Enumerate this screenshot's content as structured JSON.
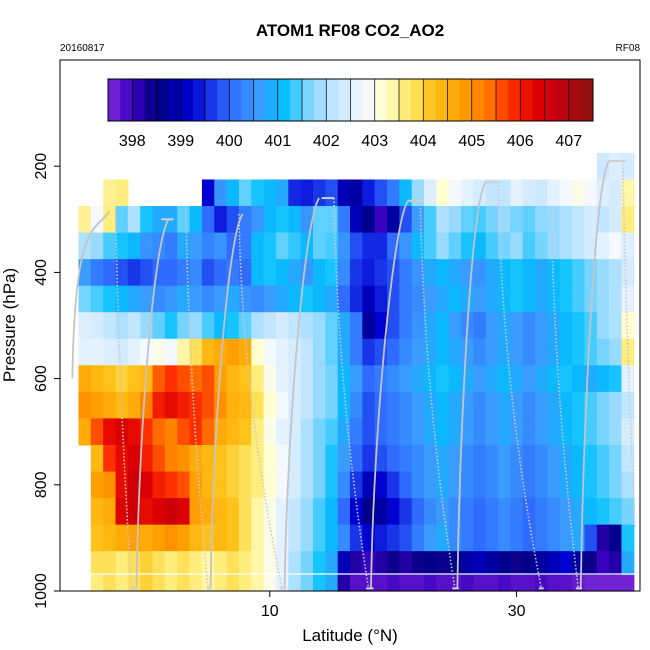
{
  "chart_data": {
    "type": "heatmap",
    "title": "ATOM1 RF08 CO2_AO2",
    "date_label": "20160817",
    "flight_label": "RF08",
    "xlabel": "Latitude (°N)",
    "ylabel": "Pressure (hPa)",
    "xlim": [
      -7,
      40
    ],
    "ylim": [
      1000,
      0
    ],
    "xticks": [
      10,
      30
    ],
    "yticks": [
      200,
      400,
      600,
      800,
      1000
    ],
    "colorbar": {
      "ticks": [
        398,
        399,
        400,
        401,
        402,
        403,
        404,
        405,
        406,
        407
      ],
      "range": [
        397.5,
        407.5
      ],
      "stops": [
        {
          "v": 397.5,
          "c": "#7f2bd6"
        },
        {
          "v": 398.0,
          "c": "#3a00c0"
        },
        {
          "v": 398.5,
          "c": "#00007f"
        },
        {
          "v": 399.2,
          "c": "#0000d0"
        },
        {
          "v": 400.0,
          "c": "#2f6bff"
        },
        {
          "v": 400.6,
          "c": "#3a9cff"
        },
        {
          "v": 401.1,
          "c": "#00c0ff"
        },
        {
          "v": 401.7,
          "c": "#8fd8ff"
        },
        {
          "v": 402.3,
          "c": "#cde9ff"
        },
        {
          "v": 402.8,
          "c": "#f4f8ff"
        },
        {
          "v": 403.2,
          "c": "#ffffd0"
        },
        {
          "v": 403.7,
          "c": "#ffe86a"
        },
        {
          "v": 404.2,
          "c": "#ffc21a"
        },
        {
          "v": 404.8,
          "c": "#ffa000"
        },
        {
          "v": 405.3,
          "c": "#ff7a00"
        },
        {
          "v": 405.8,
          "c": "#ff3000"
        },
        {
          "v": 406.3,
          "c": "#e00000"
        },
        {
          "v": 406.8,
          "c": "#c00010"
        },
        {
          "v": 407.5,
          "c": "#8a1410"
        }
      ]
    },
    "pressure_levels": [
      200,
      250,
      300,
      350,
      400,
      450,
      500,
      550,
      600,
      650,
      700,
      750,
      800,
      850,
      900,
      950,
      990
    ],
    "lat_bins": [
      -5,
      -4,
      -3,
      -2,
      -1,
      0,
      1,
      2,
      3,
      4,
      5,
      6,
      7,
      8,
      9,
      10,
      11,
      12,
      13,
      14,
      15,
      16,
      17,
      18,
      19,
      20,
      21,
      22,
      23,
      24,
      25,
      26,
      27,
      28,
      29,
      30,
      31,
      32,
      33,
      34,
      35,
      36,
      37,
      38,
      39
    ],
    "co2_rows": [
      [
        null,
        null,
        null,
        null,
        null,
        null,
        null,
        null,
        null,
        null,
        null,
        null,
        null,
        null,
        null,
        null,
        null,
        null,
        null,
        null,
        null,
        null,
        null,
        null,
        null,
        null,
        null,
        null,
        null,
        null,
        null,
        null,
        null,
        null,
        null,
        null,
        null,
        null,
        null,
        null,
        null,
        null,
        402.3,
        402.5,
        402.4
      ],
      [
        null,
        null,
        403.5,
        403.6,
        null,
        null,
        null,
        null,
        null,
        null,
        399.2,
        400.5,
        401.0,
        401.5,
        401.2,
        401.0,
        400.8,
        399.5,
        399.4,
        399.6,
        399.8,
        399.0,
        398.8,
        399.4,
        399.8,
        400.2,
        401.0,
        401.8,
        402.5,
        403.2,
        402.8,
        402.6,
        402.4,
        402.2,
        402.2,
        402.6,
        402.4,
        402.3,
        402.6,
        402.8,
        403.0,
        402.8,
        402.5,
        402.4,
        403.4
      ],
      [
        403.5,
        402.8,
        403.6,
        401.5,
        402.0,
        401.2,
        400.8,
        400.8,
        401.5,
        401.0,
        400.0,
        399.4,
        399.8,
        400.2,
        400.5,
        401.0,
        401.2,
        401.0,
        400.5,
        401.5,
        401.5,
        400.2,
        399.0,
        398.6,
        398.0,
        398.8,
        399.8,
        400.6,
        401.4,
        402.0,
        401.8,
        401.5,
        401.4,
        401.6,
        401.8,
        401.6,
        401.5,
        401.7,
        401.8,
        402.0,
        402.2,
        402.4,
        402.2,
        402.4,
        403.6
      ],
      [
        402.0,
        401.8,
        401.4,
        401.2,
        401.0,
        400.5,
        400.4,
        400.2,
        400.8,
        400.6,
        400.3,
        400.5,
        400.0,
        400.2,
        401.0,
        401.2,
        401.5,
        401.3,
        401.0,
        401.5,
        401.4,
        400.5,
        399.8,
        399.5,
        399.5,
        400.0,
        400.5,
        401.0,
        401.4,
        401.8,
        401.5,
        401.2,
        401.0,
        401.4,
        401.6,
        401.8,
        401.4,
        401.6,
        401.8,
        402.0,
        402.2,
        402.4,
        402.6,
        402.8,
        402.5
      ],
      [
        400.6,
        400.2,
        400.0,
        399.8,
        399.6,
        399.8,
        400.0,
        400.0,
        400.2,
        400.4,
        399.8,
        400.0,
        400.2,
        400.0,
        401.0,
        401.2,
        401.0,
        400.8,
        400.5,
        401.0,
        401.2,
        400.4,
        399.6,
        399.4,
        399.6,
        399.8,
        400.2,
        400.5,
        400.8,
        401.0,
        400.8,
        400.6,
        400.5,
        400.8,
        401.0,
        401.2,
        401.0,
        400.8,
        401.0,
        401.2,
        401.4,
        401.6,
        401.8,
        402.0,
        402.4
      ],
      [
        401.6,
        401.4,
        401.2,
        401.0,
        400.8,
        400.6,
        400.4,
        400.5,
        400.8,
        400.6,
        400.4,
        400.6,
        400.8,
        400.5,
        400.4,
        400.6,
        400.8,
        401.0,
        401.2,
        401.0,
        400.8,
        400.0,
        399.5,
        399.0,
        399.4,
        399.8,
        400.2,
        400.4,
        400.6,
        400.8,
        401.0,
        400.8,
        400.6,
        400.8,
        401.0,
        401.2,
        401.0,
        400.8,
        401.0,
        401.2,
        401.4,
        401.6,
        401.8,
        402.0,
        402.6
      ],
      [
        402.5,
        402.4,
        402.2,
        402.0,
        402.2,
        401.8,
        401.5,
        401.2,
        401.6,
        401.8,
        401.4,
        401.0,
        401.2,
        401.5,
        402.0,
        402.2,
        402.4,
        402.2,
        402.0,
        401.8,
        401.5,
        400.8,
        400.2,
        398.8,
        399.2,
        399.8,
        400.2,
        400.5,
        400.8,
        401.0,
        400.6,
        400.4,
        400.2,
        400.6,
        400.8,
        400.6,
        400.4,
        400.6,
        400.8,
        401.0,
        401.2,
        401.4,
        401.8,
        402.0,
        403.2
      ],
      [
        402.6,
        402.6,
        402.5,
        402.4,
        402.6,
        402.8,
        403.0,
        402.8,
        403.4,
        403.8,
        404.4,
        404.6,
        404.8,
        404.6,
        403.2,
        402.8,
        402.6,
        402.4,
        402.2,
        401.8,
        401.5,
        400.8,
        400.2,
        399.6,
        399.8,
        400.0,
        400.4,
        400.6,
        400.8,
        401.0,
        400.8,
        400.6,
        400.4,
        400.6,
        400.8,
        400.6,
        400.4,
        400.6,
        400.8,
        401.0,
        401.2,
        401.4,
        401.6,
        401.8,
        403.6
      ],
      [
        404.6,
        404.4,
        404.2,
        404.0,
        404.2,
        404.4,
        405.5,
        405.8,
        405.6,
        405.4,
        405.6,
        404.8,
        404.4,
        404.2,
        403.6,
        403.0,
        402.6,
        402.4,
        402.2,
        401.8,
        401.6,
        401.0,
        400.6,
        400.0,
        400.2,
        400.4,
        400.6,
        400.8,
        401.0,
        401.2,
        401.0,
        400.8,
        400.6,
        400.8,
        401.0,
        400.8,
        400.6,
        400.8,
        401.0,
        401.2,
        401.0,
        400.8,
        401.0,
        401.2,
        402.6
      ],
      [
        405.0,
        404.8,
        404.6,
        404.4,
        404.6,
        405.2,
        406.0,
        406.2,
        406.0,
        405.8,
        405.6,
        405.0,
        404.5,
        404.4,
        403.8,
        403.2,
        402.8,
        402.4,
        402.2,
        401.8,
        401.6,
        401.0,
        400.4,
        399.8,
        400.0,
        400.2,
        400.4,
        400.6,
        400.8,
        401.0,
        400.8,
        400.6,
        400.4,
        400.6,
        400.8,
        400.6,
        400.4,
        400.6,
        400.8,
        401.0,
        401.2,
        401.4,
        401.6,
        401.8,
        402.2
      ],
      [
        404.6,
        405.6,
        406.2,
        406.4,
        406.2,
        405.8,
        405.4,
        405.2,
        405.6,
        405.8,
        405.4,
        404.6,
        404.4,
        404.2,
        403.6,
        403.0,
        402.6,
        402.4,
        402.0,
        401.6,
        401.4,
        400.8,
        400.2,
        399.8,
        400.0,
        400.2,
        400.4,
        400.6,
        400.8,
        401.0,
        400.8,
        400.6,
        400.4,
        400.6,
        400.8,
        400.6,
        400.4,
        400.6,
        400.8,
        401.0,
        401.2,
        401.4,
        401.6,
        401.8,
        402.4
      ],
      [
        null,
        404.4,
        405.8,
        406.2,
        406.4,
        406.0,
        405.6,
        405.2,
        405.0,
        404.6,
        404.4,
        404.2,
        404.0,
        403.8,
        403.6,
        403.2,
        402.8,
        402.4,
        402.0,
        401.6,
        401.2,
        400.6,
        400.0,
        399.6,
        399.8,
        400.0,
        400.2,
        400.4,
        400.6,
        400.8,
        400.6,
        400.4,
        400.2,
        400.4,
        400.6,
        400.4,
        400.2,
        400.4,
        400.6,
        400.8,
        401.0,
        401.2,
        401.4,
        401.6,
        402.2
      ],
      [
        null,
        404.8,
        405.0,
        406.2,
        406.6,
        406.4,
        406.0,
        405.8,
        405.6,
        404.8,
        404.4,
        404.2,
        404.0,
        403.8,
        403.6,
        403.2,
        402.8,
        402.4,
        402.0,
        401.6,
        401.2,
        400.4,
        399.6,
        399.0,
        399.2,
        399.6,
        400.0,
        400.4,
        400.6,
        400.8,
        400.6,
        400.4,
        400.2,
        400.4,
        400.6,
        400.4,
        400.2,
        400.4,
        400.6,
        400.8,
        401.0,
        401.2,
        401.4,
        401.6,
        402.0
      ],
      [
        null,
        404.4,
        404.6,
        406.4,
        406.6,
        406.2,
        406.4,
        406.6,
        406.4,
        404.8,
        404.6,
        404.4,
        404.2,
        403.8,
        403.4,
        403.0,
        402.6,
        402.2,
        401.8,
        401.4,
        401.0,
        400.0,
        399.2,
        398.6,
        398.8,
        399.2,
        399.6,
        400.0,
        400.4,
        400.6,
        400.4,
        400.2,
        400.0,
        400.2,
        400.4,
        400.2,
        400.0,
        400.2,
        400.4,
        400.6,
        400.8,
        401.0,
        401.2,
        401.4,
        401.6
      ],
      [
        null,
        404.2,
        404.4,
        404.6,
        404.8,
        404.6,
        404.8,
        405.0,
        404.8,
        404.4,
        404.2,
        404.4,
        404.2,
        403.8,
        403.4,
        403.0,
        402.6,
        402.2,
        401.8,
        401.4,
        401.0,
        400.4,
        399.6,
        399.2,
        399.4,
        399.6,
        399.8,
        400.2,
        400.6,
        400.8,
        400.4,
        400.2,
        400.0,
        400.2,
        400.4,
        400.2,
        400.0,
        400.2,
        400.4,
        400.6,
        400.8,
        399.8,
        398.2,
        398.6,
        401.2
      ],
      [
        null,
        403.8,
        403.8,
        403.6,
        403.8,
        404.0,
        403.8,
        403.6,
        403.8,
        403.6,
        403.4,
        403.6,
        403.8,
        403.6,
        403.4,
        403.0,
        402.6,
        402.0,
        401.6,
        401.2,
        400.8,
        399.0,
        398.2,
        398.0,
        398.2,
        398.4,
        398.2,
        398.4,
        398.6,
        398.4,
        398.6,
        398.8,
        399.0,
        398.8,
        398.6,
        398.4,
        398.6,
        398.8,
        399.0,
        399.2,
        398.8,
        398.4,
        398.0,
        398.2,
        400.8
      ],
      [
        null,
        403.6,
        403.8,
        403.6,
        403.8,
        404.0,
        403.8,
        403.6,
        403.8,
        403.6,
        403.4,
        403.6,
        403.8,
        403.6,
        403.4,
        403.0,
        402.6,
        402.0,
        401.6,
        401.2,
        400.8,
        398.2,
        397.8,
        397.8,
        397.8,
        397.9,
        397.8,
        397.8,
        397.9,
        397.8,
        397.8,
        397.9,
        397.8,
        397.8,
        397.9,
        397.8,
        397.8,
        397.9,
        397.8,
        397.8,
        397.7,
        397.6,
        397.6,
        397.6,
        397.6
      ]
    ]
  }
}
